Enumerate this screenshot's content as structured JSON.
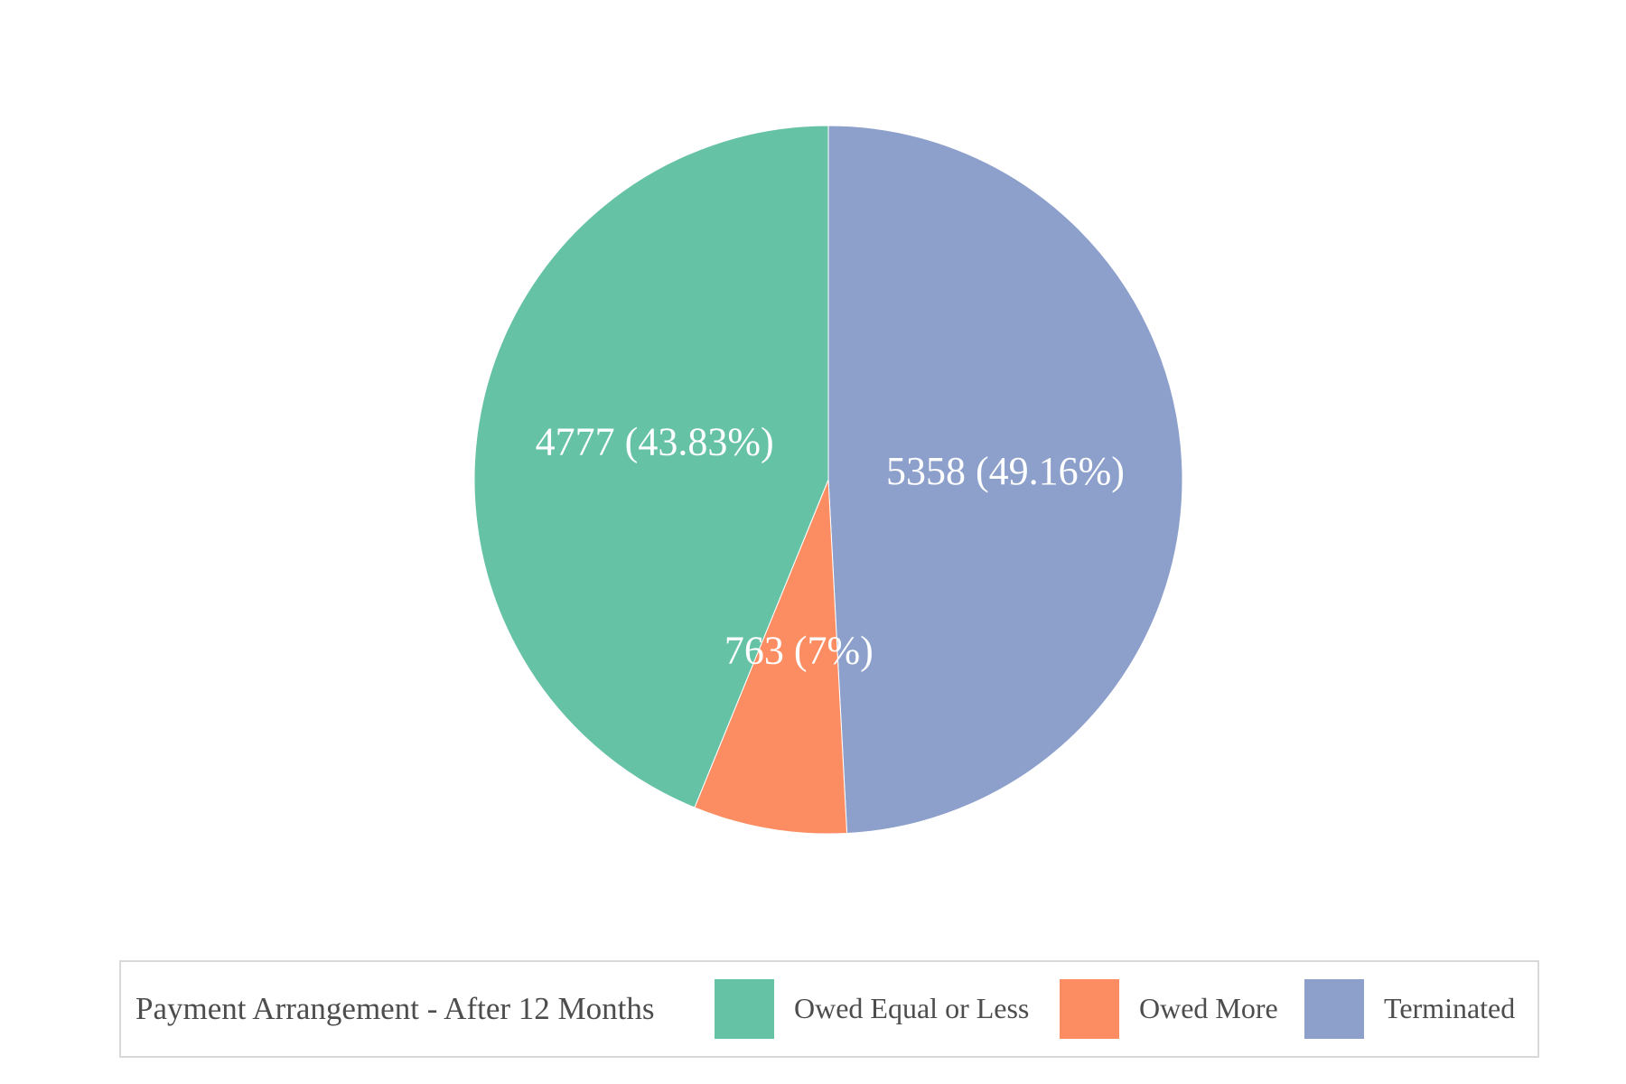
{
  "chart_data": {
    "type": "pie",
    "title": "",
    "legend": {
      "title": "Payment Arrangement - After 12 Months",
      "placement": "bottom"
    },
    "slices": [
      {
        "name": "Owed Equal or Less",
        "value": 4777,
        "label": "4777 (43.83%)",
        "color": "#66c2a5"
      },
      {
        "name": "Owed More",
        "value": 763,
        "label": "763 (7%)",
        "color": "#fc8d62"
      },
      {
        "name": "Terminated",
        "value": 5358,
        "label": "5358 (49.16%)",
        "color": "#8da0cb"
      }
    ]
  }
}
